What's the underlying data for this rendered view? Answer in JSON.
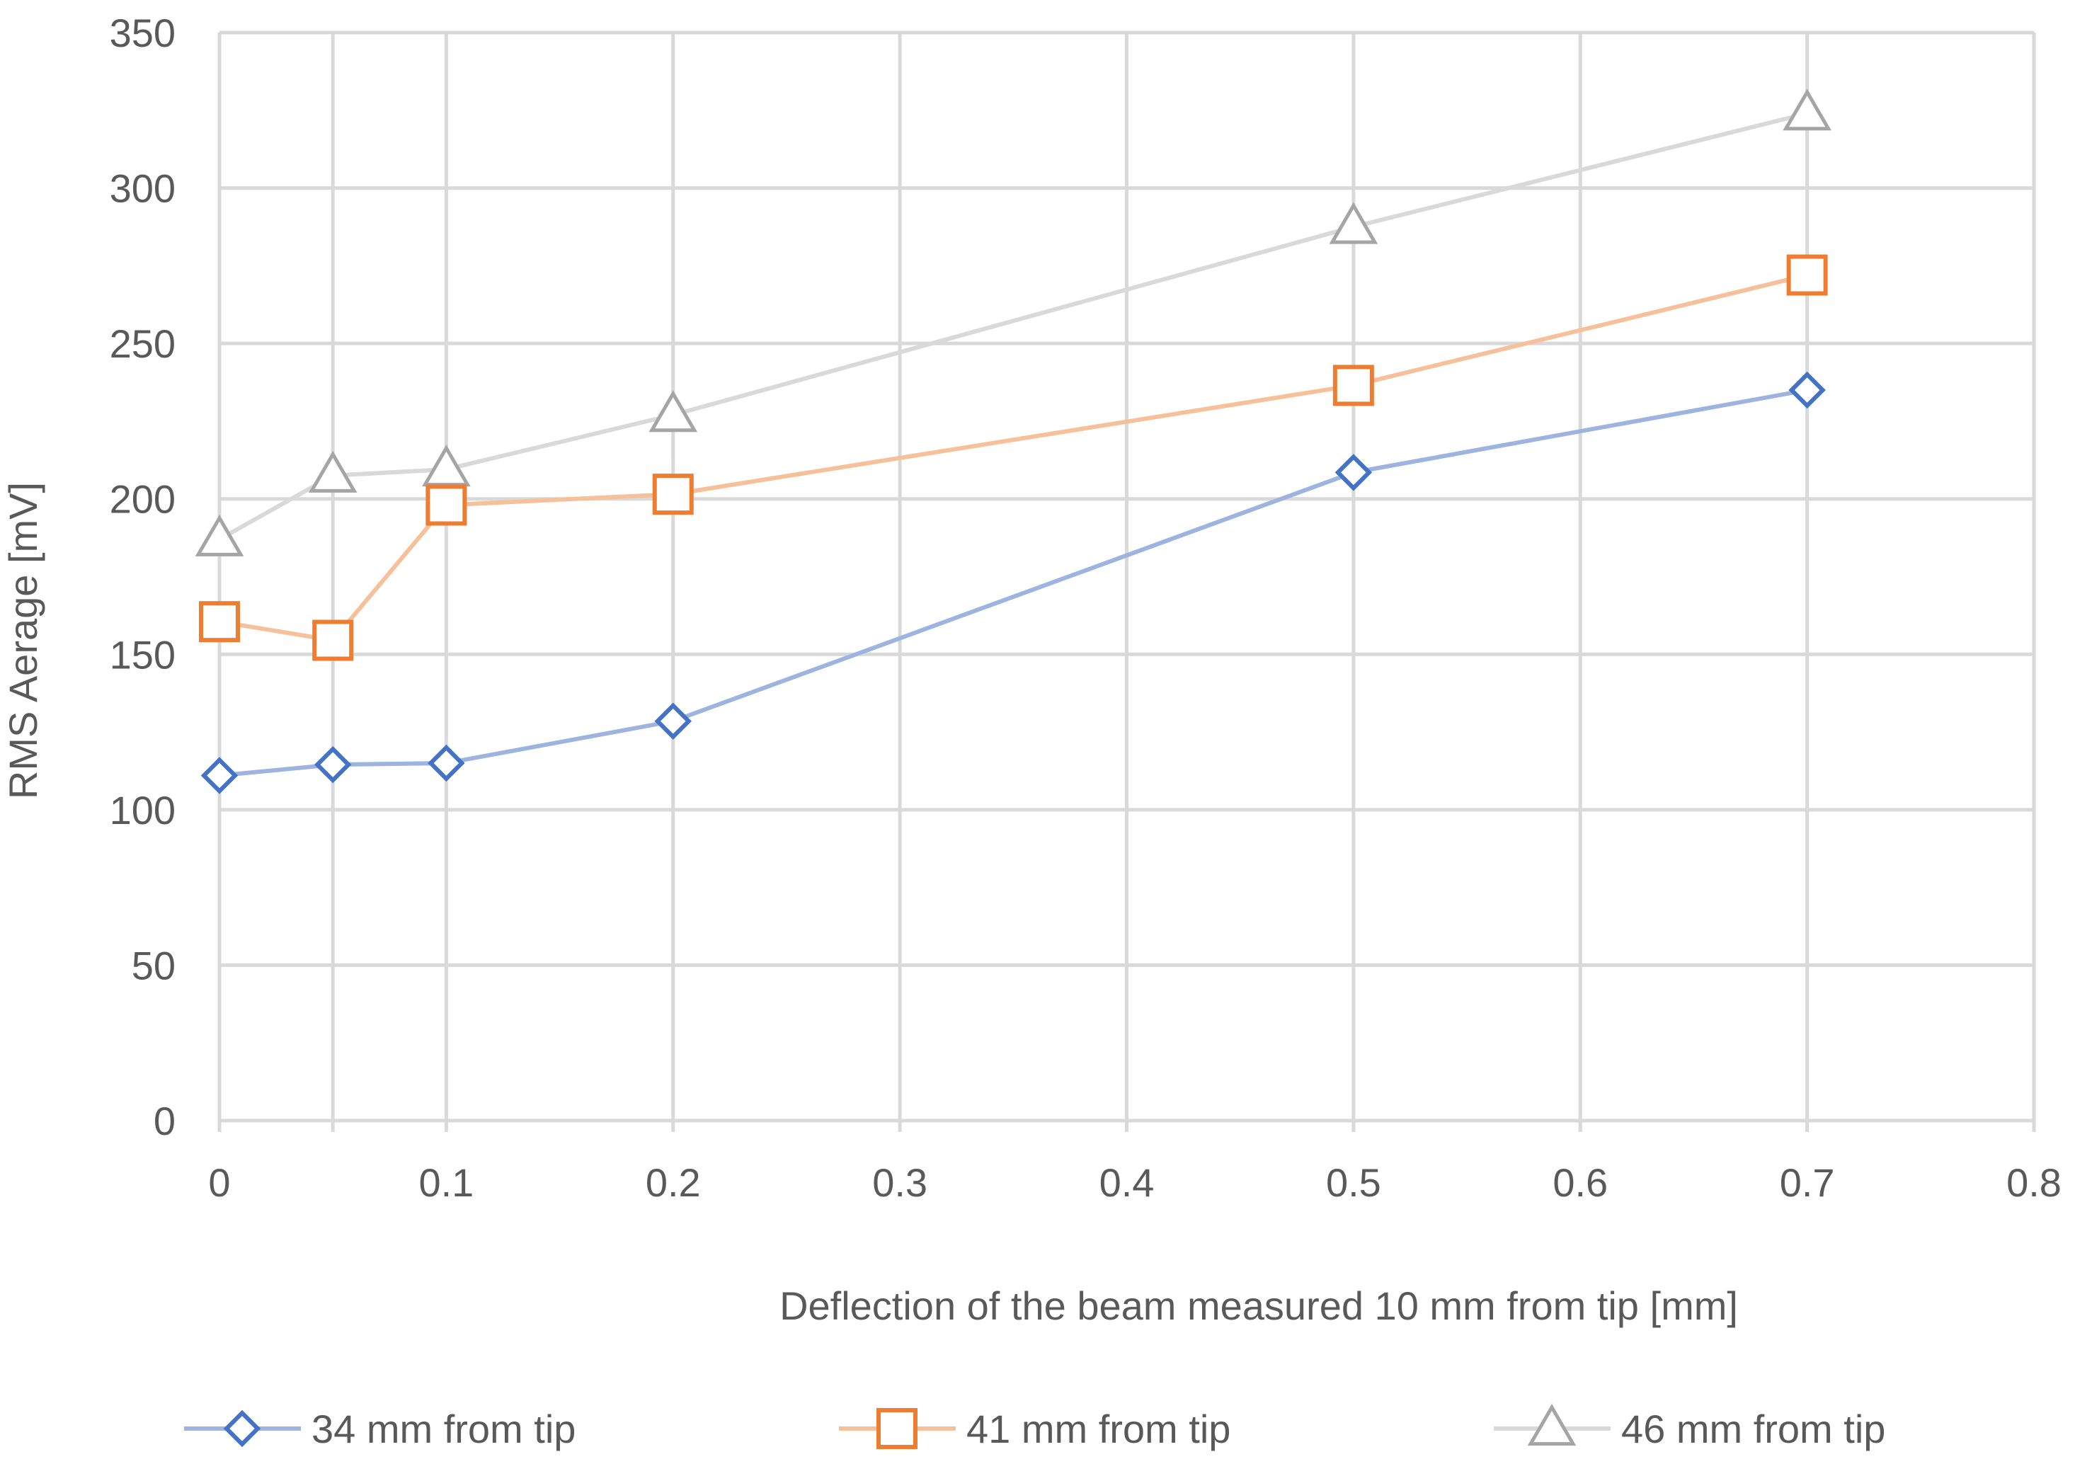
{
  "chart_data": {
    "type": "line",
    "title": "",
    "xlabel": "Deflection of the beam measured 10 mm from tip [mm]",
    "ylabel": "RMS Aerage [mV]",
    "xlim": [
      0,
      0.8
    ],
    "ylim": [
      0,
      350
    ],
    "x_ticks": [
      0,
      0.1,
      0.2,
      0.3,
      0.4,
      0.5,
      0.6,
      0.7,
      0.8
    ],
    "x_tick_labels": [
      "0",
      "0.1",
      "0.2",
      "0.3",
      "0.4",
      "0.5",
      "0.6",
      "0.7",
      "0.8"
    ],
    "y_ticks": [
      0,
      50,
      100,
      150,
      200,
      250,
      300,
      350
    ],
    "y_tick_labels": [
      "0",
      "50",
      "100",
      "150",
      "200",
      "250",
      "300",
      "350"
    ],
    "vertical_gridlines": [
      0,
      0.05,
      0.1,
      0.2,
      0.3,
      0.4,
      0.5,
      0.6,
      0.7,
      0.8
    ],
    "grid": true,
    "legend_position": "bottom",
    "series": [
      {
        "name": "34 mm from tip",
        "marker": "diamond",
        "line_color": "#9DB3E0",
        "marker_color": "#4472C4",
        "x": [
          0,
          0.05,
          0.1,
          0.2,
          0.5,
          0.7
        ],
        "values": [
          111,
          114.5,
          115,
          128.5,
          208.5,
          235
        ]
      },
      {
        "name": "41 mm from tip",
        "marker": "square",
        "line_color": "#F6C09A",
        "marker_color": "#ED7D31",
        "x": [
          0,
          0.05,
          0.1,
          0.2,
          0.5,
          0.7
        ],
        "values": [
          160.5,
          154.5,
          198,
          201.5,
          236.5,
          272
        ]
      },
      {
        "name": "46 mm from tip",
        "marker": "triangle",
        "line_color": "#D9D9D9",
        "marker_color": "#A5A5A5",
        "x": [
          0,
          0.05,
          0.1,
          0.2,
          0.5,
          0.7
        ],
        "values": [
          187,
          207.5,
          209.5,
          227,
          287.5,
          324
        ]
      }
    ]
  }
}
